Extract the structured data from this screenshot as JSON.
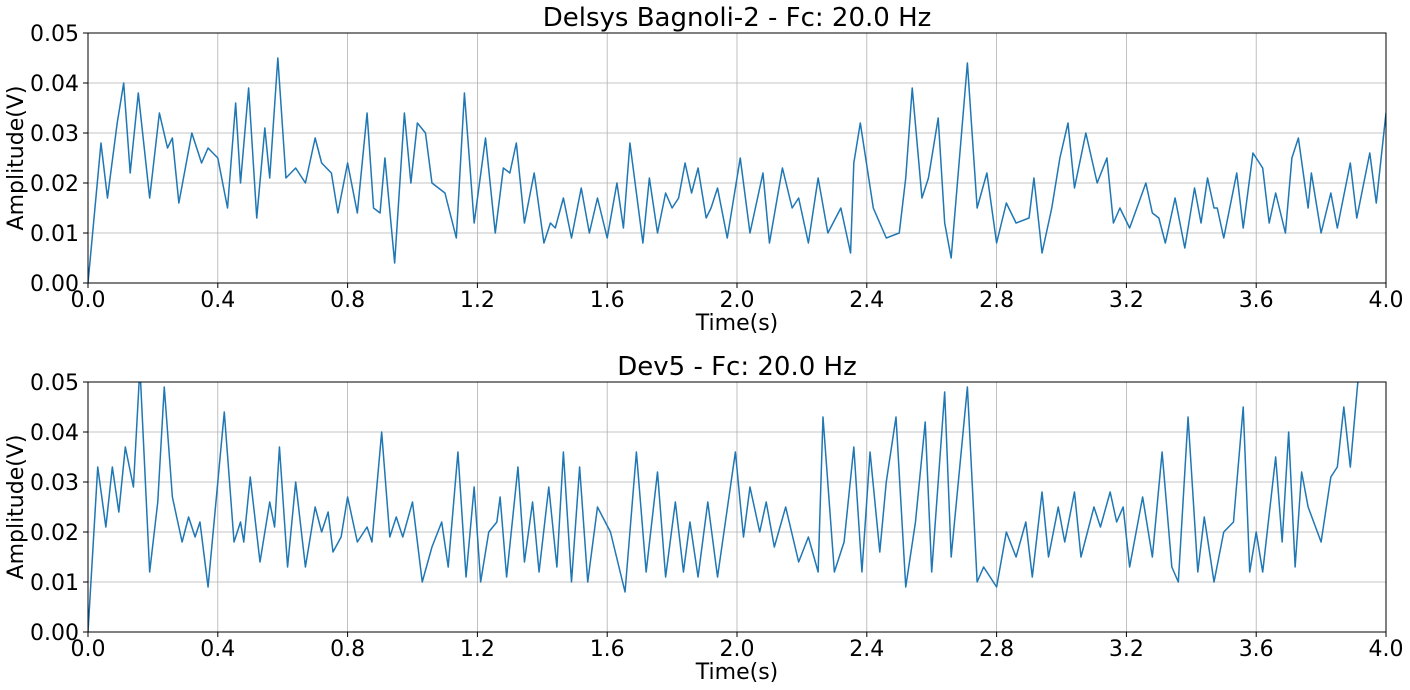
{
  "chart_data": [
    {
      "type": "line",
      "title": "Delsys Bagnoli-2 - Fc: 20.0 Hz",
      "xlabel": "Time(s)",
      "ylabel": "Amplitude(V)",
      "xlim": [
        0,
        4.0
      ],
      "ylim": [
        0,
        0.05
      ],
      "grid": true,
      "xticks": [
        {
          "value": 0,
          "label": "0.0"
        },
        0.4,
        0.8,
        1.2,
        1.6,
        {
          "value": 2,
          "label": "2.0"
        },
        2.4,
        2.8,
        3.2,
        3.6,
        {
          "value": 4,
          "label": "4.0"
        }
      ],
      "yticks": [
        {
          "value": 0,
          "label": "0.00"
        },
        0.01,
        0.02,
        0.03,
        0.04,
        0.05
      ],
      "color": "#1f77b4",
      "x": [
        0,
        0.04,
        0.06,
        0.09,
        0.11,
        0.13,
        0.155,
        0.19,
        0.22,
        0.245,
        0.26,
        0.28,
        0.32,
        0.35,
        0.37,
        0.4,
        0.43,
        0.455,
        0.47,
        0.495,
        0.52,
        0.545,
        0.56,
        0.585,
        0.61,
        0.64,
        0.67,
        0.7,
        0.72,
        0.75,
        0.77,
        0.8,
        0.83,
        0.86,
        0.88,
        0.9,
        0.915,
        0.945,
        0.975,
        0.995,
        1.015,
        1.04,
        1.06,
        1.1,
        1.135,
        1.16,
        1.19,
        1.225,
        1.255,
        1.28,
        1.3,
        1.32,
        1.345,
        1.375,
        1.405,
        1.425,
        1.44,
        1.465,
        1.49,
        1.52,
        1.545,
        1.57,
        1.6,
        1.63,
        1.65,
        1.67,
        1.71,
        1.73,
        1.755,
        1.78,
        1.8,
        1.82,
        1.84,
        1.86,
        1.88,
        1.905,
        1.92,
        1.94,
        1.97,
        2.01,
        2.04,
        2.08,
        2.1,
        2.14,
        2.17,
        2.19,
        2.22,
        2.25,
        2.28,
        2.32,
        2.35,
        2.36,
        2.38,
        2.42,
        2.46,
        2.5,
        2.52,
        2.54,
        2.57,
        2.59,
        2.62,
        2.64,
        2.66,
        2.71,
        2.74,
        2.77,
        2.8,
        2.83,
        2.86,
        2.9,
        2.915,
        2.94,
        2.97,
        2.995,
        3.02,
        3.04,
        3.075,
        3.11,
        3.14,
        3.16,
        3.18,
        3.21,
        3.26,
        3.28,
        3.3,
        3.32,
        3.35,
        3.38,
        3.41,
        3.43,
        3.45,
        3.47,
        3.48,
        3.5,
        3.54,
        3.56,
        3.59,
        3.62,
        3.64,
        3.66,
        3.69,
        3.71,
        3.73,
        3.76,
        3.77,
        3.8,
        3.83,
        3.85,
        3.89,
        3.91,
        3.95,
        3.97,
        4.0
      ],
      "values": [
        0,
        0.028,
        0.017,
        0.032,
        0.04,
        0.022,
        0.038,
        0.017,
        0.034,
        0.027,
        0.029,
        0.016,
        0.03,
        0.024,
        0.027,
        0.025,
        0.015,
        0.036,
        0.02,
        0.039,
        0.013,
        0.031,
        0.021,
        0.045,
        0.021,
        0.023,
        0.02,
        0.029,
        0.024,
        0.022,
        0.014,
        0.024,
        0.014,
        0.034,
        0.015,
        0.014,
        0.025,
        0.004,
        0.034,
        0.02,
        0.032,
        0.03,
        0.02,
        0.018,
        0.009,
        0.038,
        0.012,
        0.029,
        0.01,
        0.023,
        0.022,
        0.028,
        0.012,
        0.022,
        0.008,
        0.012,
        0.011,
        0.017,
        0.009,
        0.019,
        0.01,
        0.017,
        0.009,
        0.02,
        0.011,
        0.028,
        0.008,
        0.021,
        0.01,
        0.018,
        0.015,
        0.017,
        0.024,
        0.018,
        0.023,
        0.013,
        0.015,
        0.019,
        0.009,
        0.025,
        0.01,
        0.022,
        0.008,
        0.023,
        0.015,
        0.017,
        0.008,
        0.021,
        0.01,
        0.015,
        0.006,
        0.024,
        0.032,
        0.015,
        0.009,
        0.01,
        0.021,
        0.039,
        0.017,
        0.021,
        0.033,
        0.012,
        0.005,
        0.044,
        0.015,
        0.022,
        0.008,
        0.016,
        0.012,
        0.013,
        0.021,
        0.006,
        0.015,
        0.025,
        0.032,
        0.019,
        0.03,
        0.02,
        0.025,
        0.012,
        0.015,
        0.011,
        0.02,
        0.014,
        0.013,
        0.008,
        0.017,
        0.007,
        0.019,
        0.012,
        0.021,
        0.015,
        0.015,
        0.009,
        0.022,
        0.011,
        0.026,
        0.023,
        0.012,
        0.018,
        0.01,
        0.025,
        0.029,
        0.015,
        0.022,
        0.01,
        0.018,
        0.011,
        0.024,
        0.013,
        0.026,
        0.016,
        0.034
      ]
    },
    {
      "type": "line",
      "title": "Dev5 - Fc: 20.0 Hz",
      "xlabel": "Time(s)",
      "ylabel": "Amplitude(V)",
      "xlim": [
        0,
        4.0
      ],
      "ylim": [
        0,
        0.05
      ],
      "grid": true,
      "xticks": [
        {
          "value": 0,
          "label": "0.0"
        },
        0.4,
        0.8,
        1.2,
        1.6,
        {
          "value": 2,
          "label": "2.0"
        },
        2.4,
        2.8,
        3.2,
        3.6,
        {
          "value": 4,
          "label": "4.0"
        }
      ],
      "yticks": [
        {
          "value": 0,
          "label": "0.00"
        },
        0.01,
        0.02,
        0.03,
        0.04,
        0.05
      ],
      "color": "#1f77b4",
      "x": [
        0,
        0.03,
        0.055,
        0.075,
        0.095,
        0.115,
        0.14,
        0.16,
        0.19,
        0.215,
        0.235,
        0.26,
        0.29,
        0.31,
        0.33,
        0.345,
        0.37,
        0.4,
        0.42,
        0.45,
        0.47,
        0.48,
        0.5,
        0.53,
        0.56,
        0.575,
        0.59,
        0.615,
        0.64,
        0.67,
        0.7,
        0.72,
        0.74,
        0.755,
        0.78,
        0.8,
        0.83,
        0.86,
        0.875,
        0.905,
        0.93,
        0.95,
        0.97,
        1.0,
        1.03,
        1.06,
        1.09,
        1.11,
        1.14,
        1.165,
        1.19,
        1.21,
        1.235,
        1.26,
        1.27,
        1.29,
        1.325,
        1.345,
        1.37,
        1.39,
        1.42,
        1.445,
        1.465,
        1.49,
        1.515,
        1.54,
        1.57,
        1.61,
        1.655,
        1.69,
        1.72,
        1.755,
        1.78,
        1.81,
        1.835,
        1.855,
        1.88,
        1.91,
        1.94,
        1.995,
        2.02,
        2.04,
        2.07,
        2.09,
        2.115,
        2.15,
        2.19,
        2.22,
        2.25,
        2.265,
        2.3,
        2.33,
        2.36,
        2.385,
        2.41,
        2.44,
        2.46,
        2.49,
        2.52,
        2.55,
        2.58,
        2.6,
        2.64,
        2.66,
        2.71,
        2.74,
        2.76,
        2.8,
        2.83,
        2.86,
        2.89,
        2.91,
        2.94,
        2.96,
        2.99,
        3.01,
        3.04,
        3.06,
        3.1,
        3.12,
        3.15,
        3.17,
        3.19,
        3.21,
        3.25,
        3.28,
        3.31,
        3.34,
        3.36,
        3.39,
        3.42,
        3.44,
        3.47,
        3.5,
        3.53,
        3.56,
        3.58,
        3.6,
        3.62,
        3.66,
        3.68,
        3.7,
        3.72,
        3.74,
        3.76,
        3.8,
        3.83,
        3.85,
        3.87,
        3.89,
        3.92
      ],
      "values": [
        0,
        0.033,
        0.021,
        0.033,
        0.024,
        0.037,
        0.029,
        0.053,
        0.012,
        0.026,
        0.049,
        0.027,
        0.018,
        0.023,
        0.019,
        0.022,
        0.009,
        0.03,
        0.044,
        0.018,
        0.022,
        0.018,
        0.031,
        0.014,
        0.026,
        0.021,
        0.037,
        0.013,
        0.03,
        0.013,
        0.025,
        0.02,
        0.024,
        0.016,
        0.019,
        0.027,
        0.018,
        0.021,
        0.018,
        0.04,
        0.019,
        0.023,
        0.019,
        0.026,
        0.01,
        0.017,
        0.022,
        0.013,
        0.036,
        0.011,
        0.029,
        0.01,
        0.02,
        0.022,
        0.027,
        0.011,
        0.033,
        0.014,
        0.026,
        0.012,
        0.029,
        0.013,
        0.036,
        0.01,
        0.033,
        0.01,
        0.025,
        0.02,
        0.008,
        0.036,
        0.012,
        0.032,
        0.011,
        0.026,
        0.012,
        0.022,
        0.011,
        0.026,
        0.011,
        0.036,
        0.019,
        0.029,
        0.02,
        0.026,
        0.017,
        0.025,
        0.014,
        0.019,
        0.012,
        0.043,
        0.012,
        0.018,
        0.037,
        0.012,
        0.036,
        0.016,
        0.03,
        0.043,
        0.009,
        0.022,
        0.042,
        0.012,
        0.048,
        0.015,
        0.049,
        0.01,
        0.013,
        0.009,
        0.02,
        0.015,
        0.022,
        0.011,
        0.028,
        0.015,
        0.025,
        0.018,
        0.028,
        0.015,
        0.025,
        0.021,
        0.028,
        0.022,
        0.025,
        0.013,
        0.027,
        0.015,
        0.036,
        0.013,
        0.01,
        0.043,
        0.012,
        0.023,
        0.01,
        0.02,
        0.022,
        0.045,
        0.012,
        0.02,
        0.012,
        0.035,
        0.018,
        0.04,
        0.013,
        0.032,
        0.025,
        0.018,
        0.031,
        0.033,
        0.045,
        0.033,
        0.055
      ]
    }
  ]
}
